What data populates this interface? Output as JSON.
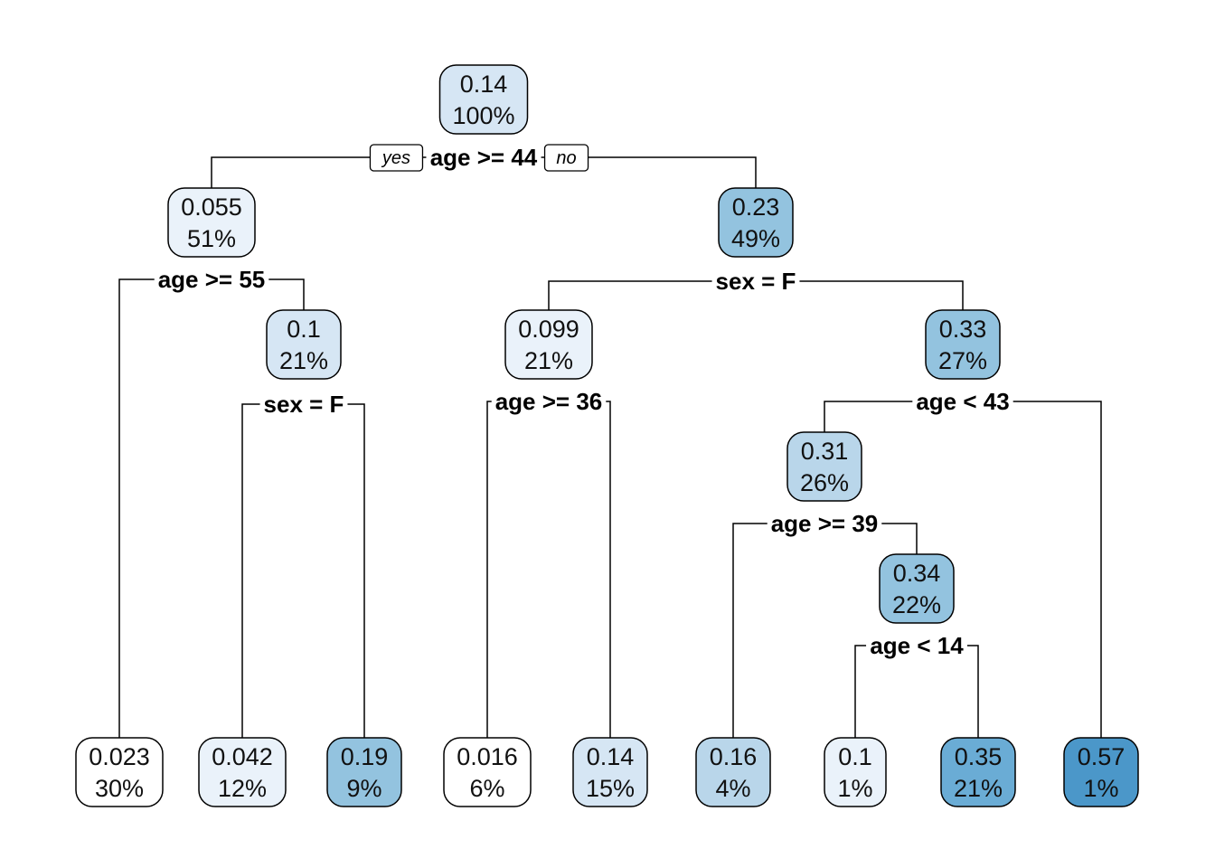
{
  "branch_labels": {
    "yes": "yes",
    "no": "no"
  },
  "palette": [
    "#ffffff",
    "#eaf2fa",
    "#d6e6f4",
    "#b9d6ea",
    "#93c3df",
    "#6aacd5",
    "#4b97c9"
  ],
  "nodes": [
    {
      "id": "n1",
      "value": "0.14",
      "percent": "100%",
      "split": "age >= 44"
    },
    {
      "id": "n2",
      "value": "0.055",
      "percent": "51%",
      "split": "age >= 55"
    },
    {
      "id": "n3",
      "value": "0.23",
      "percent": "49%",
      "split": "sex = F"
    },
    {
      "id": "n5",
      "value": "0.1",
      "percent": "21%",
      "split": "sex = F"
    },
    {
      "id": "n6",
      "value": "0.099",
      "percent": "21%",
      "split": "age >= 36"
    },
    {
      "id": "n7",
      "value": "0.33",
      "percent": "27%",
      "split": "age < 43"
    },
    {
      "id": "n14",
      "value": "0.31",
      "percent": "26%",
      "split": "age >= 39"
    },
    {
      "id": "n29",
      "value": "0.34",
      "percent": "22%",
      "split": "age < 14"
    },
    {
      "id": "l1",
      "value": "0.023",
      "percent": "30%",
      "split": ""
    },
    {
      "id": "l2",
      "value": "0.042",
      "percent": "12%",
      "split": ""
    },
    {
      "id": "l3",
      "value": "0.19",
      "percent": "9%",
      "split": ""
    },
    {
      "id": "l4",
      "value": "0.016",
      "percent": "6%",
      "split": ""
    },
    {
      "id": "l5",
      "value": "0.14",
      "percent": "15%",
      "split": ""
    },
    {
      "id": "l6",
      "value": "0.16",
      "percent": "4%",
      "split": ""
    },
    {
      "id": "l7",
      "value": "0.1",
      "percent": "1%",
      "split": ""
    },
    {
      "id": "l8",
      "value": "0.35",
      "percent": "21%",
      "split": ""
    },
    {
      "id": "l9",
      "value": "0.57",
      "percent": "1%",
      "split": ""
    }
  ]
}
